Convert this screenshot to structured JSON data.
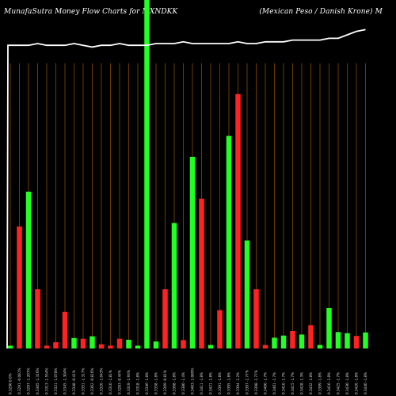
{
  "title": {
    "left": "MunafaSutra  Money Flow  Charts for MXNDKK",
    "right": "(Mexican  Peso  / Danish Krone) M"
  },
  "colors": {
    "up": "#22ff22",
    "down": "#ff2222",
    "grid": "#8a4a00",
    "line": "#ffffff",
    "background": "#000000"
  },
  "chart_data": {
    "type": "bar",
    "title": "MunafaSutra Money Flow Charts for MXNDKK (Mexican Peso / Danish Krone) M",
    "xlabel": "",
    "ylabel": "",
    "ylim": [
      0,
      100
    ],
    "grid": true,
    "categories": [
      "0.3290 0.0%",
      "0.3291 -0.081%",
      "0.3297 -1.207%",
      "0.3305 -1.316%",
      "0.3313 -1.554%",
      "0.3321 -1.078%",
      "0.3345 -1.304%",
      "0.3348 -0.41%",
      "0.3351 -1.317%",
      "0.3362 -0.816%",
      "0.3326 -1.043%",
      "0.3310 -1.81%",
      "0.3283 -0.44%",
      "0.3319 -1.93%",
      "0.3318 -1.8%",
      "0.3346 -1.8%",
      "0.3358 -1.8%",
      "0.3369 -0.81%",
      "0.3368 -1.8%",
      "0.3380 -1.4%",
      "0.3403 -1.089%",
      "0.3411 -1.8%",
      "0.3421 -1.8%",
      "0.3391 -1.8%",
      "0.3395 -1.8%",
      "0.3394 -1.2%",
      "0.3397 -1.77%",
      "0.3398 -1.77%",
      "0.3400 -1.7%",
      "0.3401 -1.7%",
      "0.3410 -1.7%",
      "0.3415 -1.7%",
      "0.3428 -1.3%",
      "0.3432 -1.8%",
      "0.3399 -1.8%",
      "0.3410 -1.8%",
      "0.3425 -1.7%",
      "0.3430 -1.8%",
      "0.3426 -1.8%",
      "0.3440 -1.8%"
    ],
    "series": [
      {
        "values": [
          0.8,
          35,
          45,
          17,
          0.8,
          1.8,
          10.5,
          3,
          2.8,
          3.5,
          1.2,
          0.8,
          2.8,
          2.5,
          0.8,
          100,
          2,
          17,
          36,
          2.4,
          55,
          43,
          1,
          11,
          61,
          73,
          31,
          17,
          1,
          3.1,
          3.7,
          5,
          4,
          6.7,
          1,
          11.6,
          4.7,
          4.4,
          3.6,
          4.6
        ],
        "colors": [
          "green",
          "red",
          "green",
          "red",
          "red",
          "red",
          "red",
          "green",
          "red",
          "green",
          "red",
          "red",
          "red",
          "green",
          "green",
          "green",
          "green",
          "red",
          "green",
          "red",
          "green",
          "red",
          "green",
          "red",
          "green",
          "red",
          "green",
          "red",
          "red",
          "green",
          "green",
          "red",
          "green",
          "red",
          "green",
          "green",
          "green",
          "green",
          "red",
          "green"
        ]
      }
    ],
    "line": [
      87,
      87,
      87,
      87.5,
      87,
      87,
      87,
      87.5,
      87,
      86.5,
      87,
      87,
      87.5,
      87,
      87,
      87,
      87.5,
      87.5,
      87.5,
      88,
      87.5,
      87.5,
      87.5,
      87.5,
      87.5,
      88,
      87.5,
      87.5,
      88,
      88,
      88,
      88.5,
      88.5,
      88.5,
      88.5,
      89,
      89,
      90,
      91,
      91.5
    ]
  }
}
